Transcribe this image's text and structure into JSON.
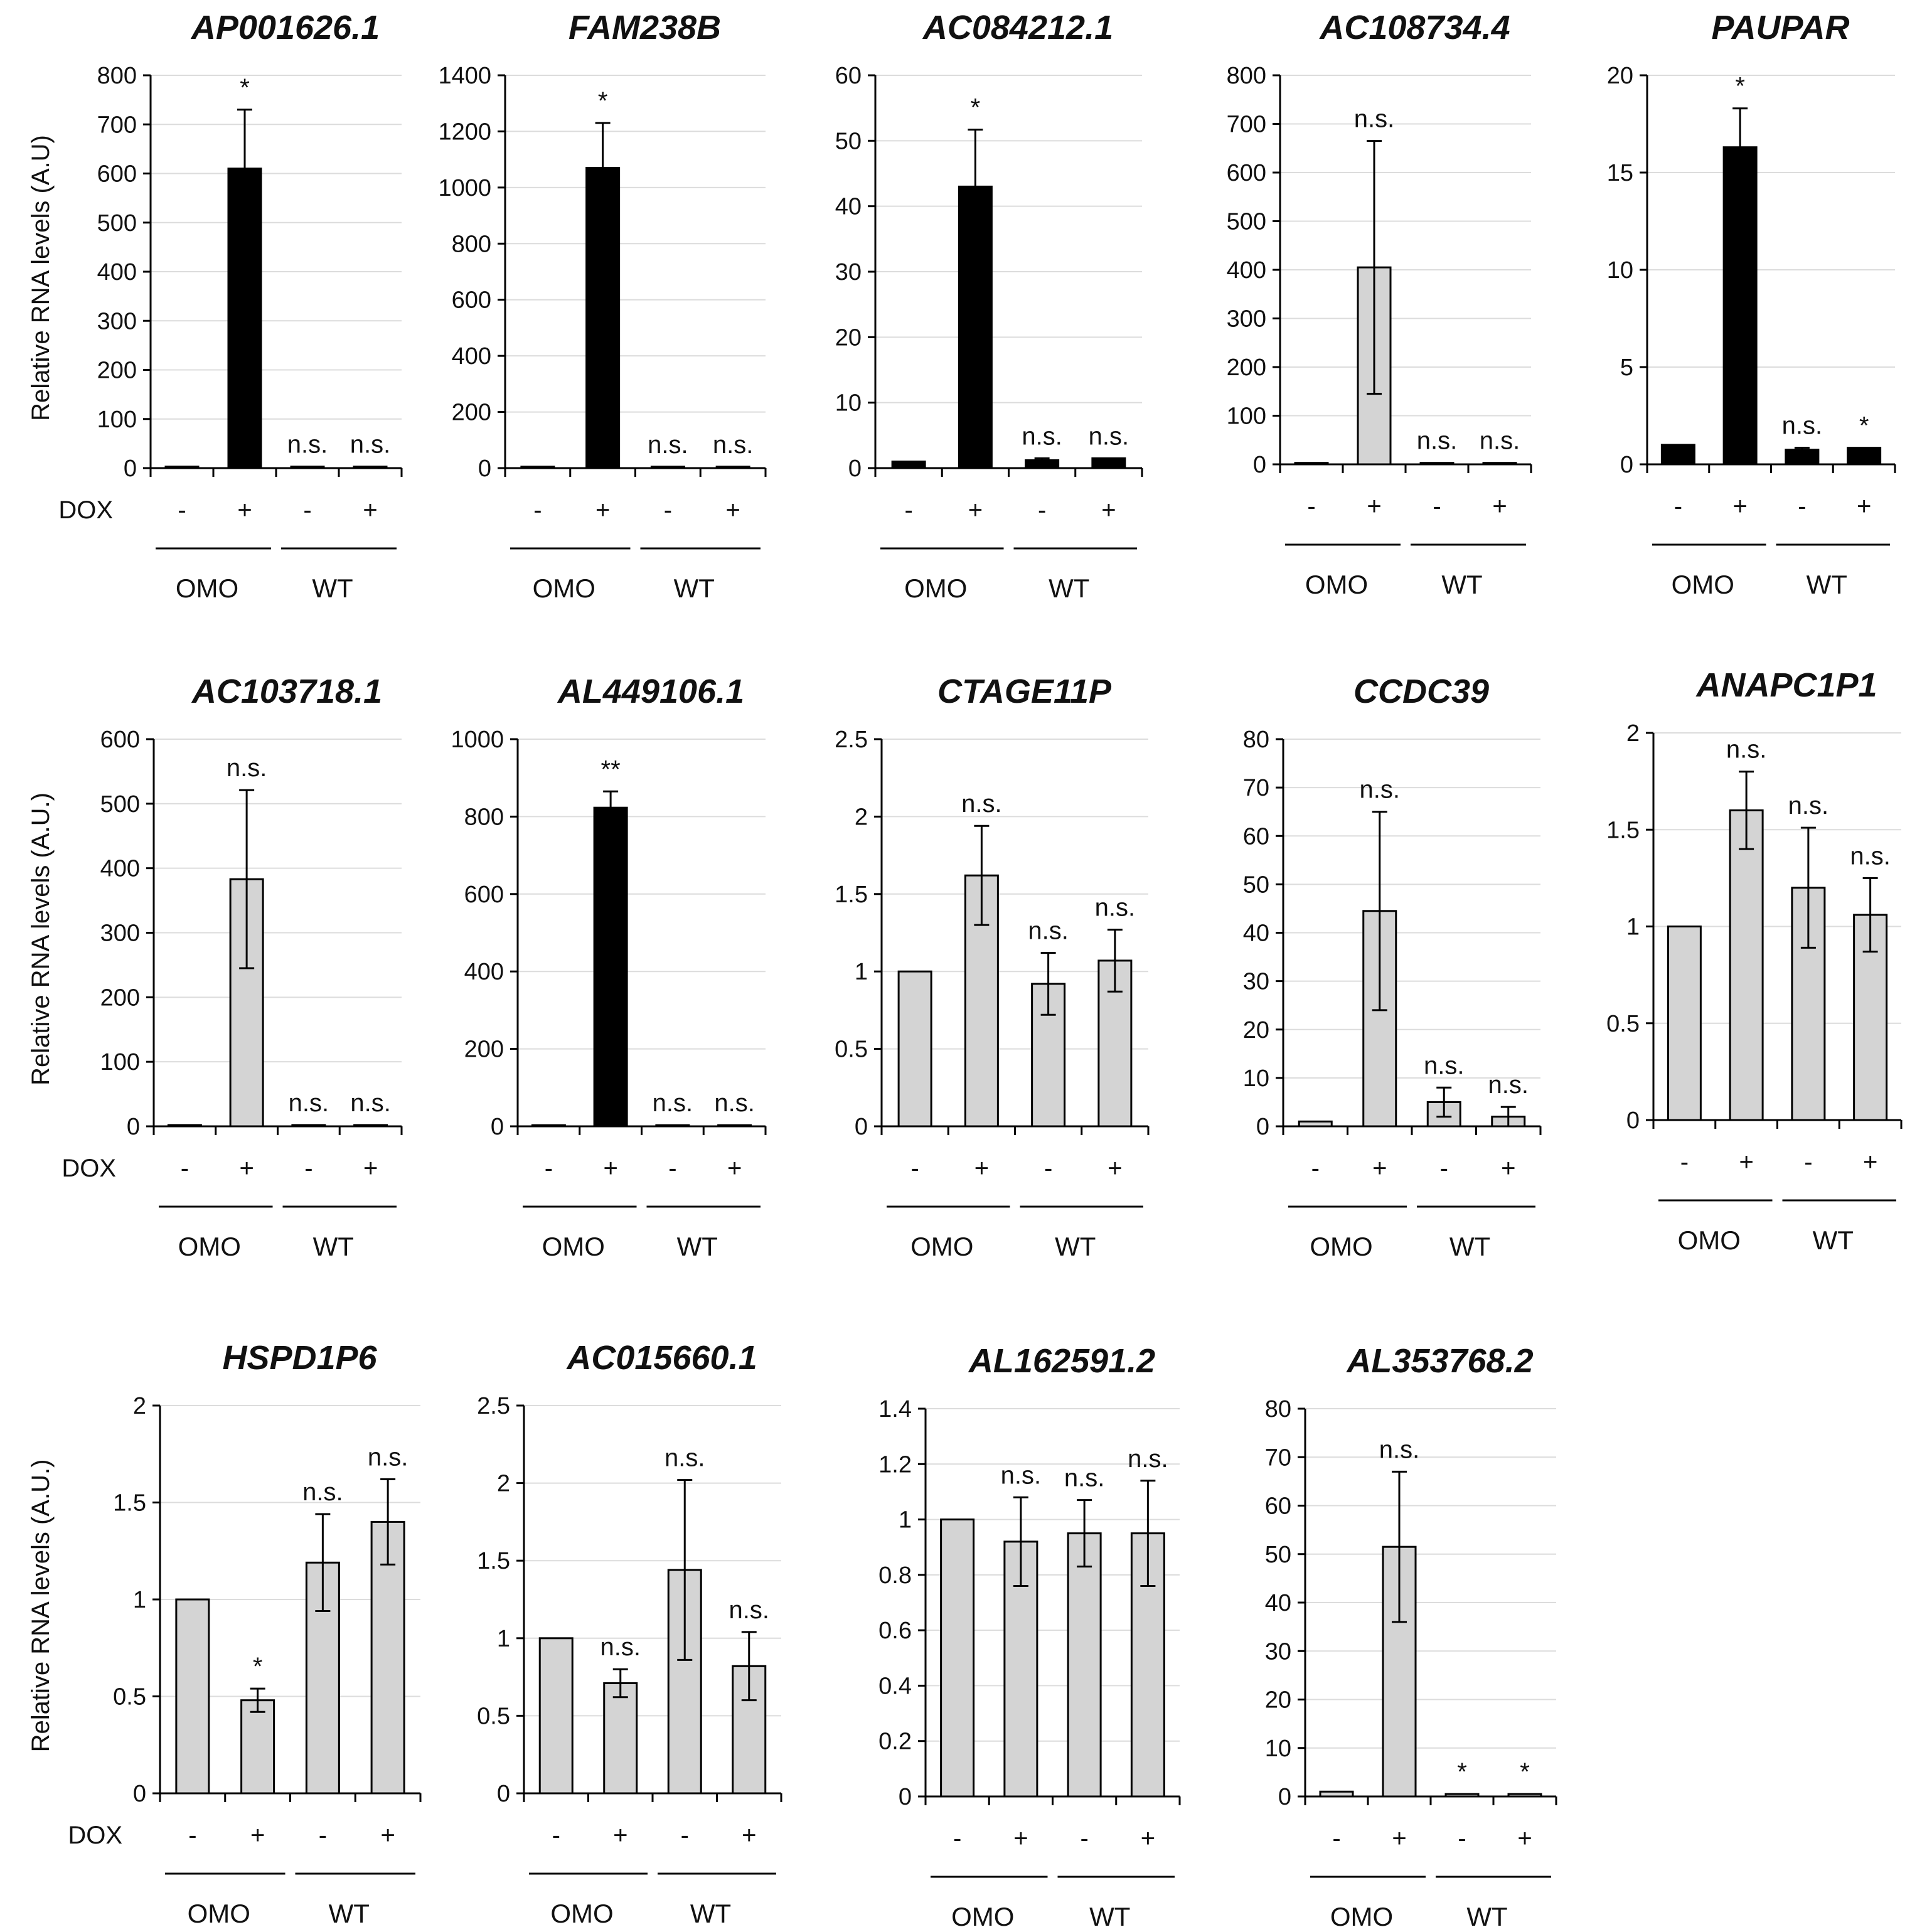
{
  "colors": {
    "black_bar": "#000000",
    "gray_bar": "#d4d4d4",
    "grid": "#dcdcdc"
  },
  "chart_data": [
    {
      "type": "bar",
      "title": "AP001626.1",
      "ylabel": "Relative RNA levels (A.U)",
      "ylim": [
        0,
        800
      ],
      "yticks": [
        "0",
        "100",
        "200",
        "300",
        "400",
        "500",
        "600",
        "700",
        "800"
      ],
      "categories": [
        "-",
        "+",
        "-",
        "+"
      ],
      "groups": [
        "OMO",
        "WT"
      ],
      "dox_label": "DOX",
      "values": [
        3,
        610,
        3,
        3
      ],
      "errors": [
        0,
        120,
        0,
        0
      ],
      "significance": [
        "",
        "*",
        "n.s.",
        "n.s."
      ],
      "bar_color": "black"
    },
    {
      "type": "bar",
      "title": "FAM238B",
      "ylabel": "",
      "ylim": [
        0,
        1400
      ],
      "yticks": [
        "0",
        "200",
        "400",
        "600",
        "800",
        "1000",
        "1200",
        "1400"
      ],
      "categories": [
        "-",
        "+",
        "-",
        "+"
      ],
      "groups": [
        "OMO",
        "WT"
      ],
      "dox_label": "",
      "values": [
        5,
        1070,
        5,
        5
      ],
      "errors": [
        0,
        160,
        0,
        0
      ],
      "significance": [
        "",
        "*",
        "n.s.",
        "n.s."
      ],
      "bar_color": "black"
    },
    {
      "type": "bar",
      "title": "AC084212.1",
      "ylabel": "",
      "ylim": [
        0,
        60
      ],
      "yticks": [
        "0",
        "10",
        "20",
        "30",
        "40",
        "50",
        "60"
      ],
      "categories": [
        "-",
        "+",
        "-",
        "+"
      ],
      "groups": [
        "OMO",
        "WT"
      ],
      "dox_label": "",
      "values": [
        1,
        43,
        1.2,
        1.5
      ],
      "errors": [
        0,
        8.7,
        0.3,
        0
      ],
      "significance": [
        "",
        "*",
        "n.s.",
        "n.s."
      ],
      "bar_color": "black"
    },
    {
      "type": "bar",
      "title": "AC108734.4",
      "ylabel": "",
      "ylim": [
        0,
        800
      ],
      "yticks": [
        "0",
        "100",
        "200",
        "300",
        "400",
        "500",
        "600",
        "700",
        "800"
      ],
      "categories": [
        "-",
        "+",
        "-",
        "+"
      ],
      "groups": [
        "OMO",
        "WT"
      ],
      "dox_label": "",
      "values": [
        3,
        405,
        3,
        3
      ],
      "errors": [
        0,
        260,
        0,
        0
      ],
      "significance": [
        "",
        "n.s.",
        "n.s.",
        "n.s."
      ],
      "bar_color": "gray"
    },
    {
      "type": "bar",
      "title": "PAUPAR",
      "ylabel": "",
      "ylim": [
        0,
        20
      ],
      "yticks": [
        "0",
        "5",
        "10",
        "15",
        "20"
      ],
      "categories": [
        "-",
        "+",
        "-",
        "+"
      ],
      "groups": [
        "OMO",
        "WT"
      ],
      "dox_label": "",
      "values": [
        1,
        16.3,
        0.75,
        0.85
      ],
      "errors": [
        0,
        2.0,
        0.1,
        0
      ],
      "significance": [
        "",
        "*",
        "n.s.",
        "*"
      ],
      "bar_color": "black"
    },
    {
      "type": "bar",
      "title": "AC103718.1",
      "ylabel": "Relative RNA levels (A.U.)",
      "ylim": [
        0,
        600
      ],
      "yticks": [
        "0",
        "100",
        "200",
        "300",
        "400",
        "500",
        "600"
      ],
      "categories": [
        "-",
        "+",
        "-",
        "+"
      ],
      "groups": [
        "OMO",
        "WT"
      ],
      "dox_label": "DOX",
      "values": [
        2,
        383,
        2,
        2
      ],
      "errors": [
        0,
        138,
        0,
        0
      ],
      "significance": [
        "",
        "n.s.",
        "n.s.",
        "n.s."
      ],
      "bar_color": "gray"
    },
    {
      "type": "bar",
      "title": "AL449106.1",
      "ylabel": "",
      "ylim": [
        0,
        1000
      ],
      "yticks": [
        "0",
        "200",
        "400",
        "600",
        "800",
        "1000"
      ],
      "categories": [
        "-",
        "+",
        "-",
        "+"
      ],
      "groups": [
        "OMO",
        "WT"
      ],
      "dox_label": "",
      "values": [
        3,
        823,
        3,
        3
      ],
      "errors": [
        0,
        42,
        0,
        0
      ],
      "significance": [
        "",
        "**",
        "n.s.",
        "n.s."
      ],
      "bar_color": "black"
    },
    {
      "type": "bar",
      "title": "CTAGE11P",
      "ylabel": "",
      "ylim": [
        0,
        2.5
      ],
      "yticks": [
        "0",
        "0.5",
        "1",
        "1.5",
        "2",
        "2.5"
      ],
      "categories": [
        "-",
        "+",
        "-",
        "+"
      ],
      "groups": [
        "OMO",
        "WT"
      ],
      "dox_label": "",
      "values": [
        1,
        1.62,
        0.92,
        1.07
      ],
      "errors": [
        0,
        0.32,
        0.2,
        0.2
      ],
      "significance": [
        "",
        "n.s.",
        "n.s.",
        "n.s."
      ],
      "bar_color": "gray"
    },
    {
      "type": "bar",
      "title": "CCDC39",
      "ylabel": "",
      "ylim": [
        0,
        80
      ],
      "yticks": [
        "0",
        "10",
        "20",
        "30",
        "40",
        "50",
        "60",
        "70",
        "80"
      ],
      "categories": [
        "-",
        "+",
        "-",
        "+"
      ],
      "groups": [
        "OMO",
        "WT"
      ],
      "dox_label": "",
      "values": [
        1,
        44.5,
        5,
        2
      ],
      "errors": [
        0,
        20.5,
        3,
        2
      ],
      "significance": [
        "",
        "n.s.",
        "n.s.",
        "n.s."
      ],
      "bar_color": "gray"
    },
    {
      "type": "bar",
      "title": "ANAPC1P1",
      "ylabel": "",
      "ylim": [
        0,
        2
      ],
      "yticks": [
        "0",
        "0.5",
        "1",
        "1.5",
        "2"
      ],
      "categories": [
        "-",
        "+",
        "-",
        "+"
      ],
      "groups": [
        "OMO",
        "WT"
      ],
      "dox_label": "",
      "values": [
        1,
        1.6,
        1.2,
        1.06
      ],
      "errors": [
        0,
        0.2,
        0.31,
        0.19
      ],
      "significance": [
        "",
        "n.s.",
        "n.s.",
        "n.s."
      ],
      "bar_color": "gray"
    },
    {
      "type": "bar",
      "title": "HSPD1P6",
      "ylabel": "Relative RNA levels (A.U.)",
      "ylim": [
        0,
        2
      ],
      "yticks": [
        "0",
        "0.5",
        "1",
        "1.5",
        "2"
      ],
      "categories": [
        "-",
        "+",
        "-",
        "+"
      ],
      "groups": [
        "OMO",
        "WT"
      ],
      "dox_label": "DOX",
      "values": [
        1,
        0.48,
        1.19,
        1.4
      ],
      "errors": [
        0,
        0.06,
        0.25,
        0.22
      ],
      "significance": [
        "",
        "*",
        "n.s.",
        "n.s."
      ],
      "bar_color": "gray"
    },
    {
      "type": "bar",
      "title": "AC015660.1",
      "ylabel": "",
      "ylim": [
        0,
        2.5
      ],
      "yticks": [
        "0",
        "0.5",
        "1",
        "1.5",
        "2",
        "2.5"
      ],
      "categories": [
        "-",
        "+",
        "-",
        "+"
      ],
      "groups": [
        "OMO",
        "WT"
      ],
      "dox_label": "",
      "values": [
        1,
        0.71,
        1.44,
        0.82
      ],
      "errors": [
        0,
        0.09,
        0.58,
        0.22
      ],
      "significance": [
        "",
        "n.s.",
        "n.s.",
        "n.s."
      ],
      "bar_color": "gray"
    },
    {
      "type": "bar",
      "title": "AL162591.2",
      "ylabel": "",
      "ylim": [
        0,
        1.4
      ],
      "yticks": [
        "0",
        "0.2",
        "0.4",
        "0.6",
        "0.8",
        "1",
        "1.2",
        "1.4"
      ],
      "categories": [
        "-",
        "+",
        "-",
        "+"
      ],
      "groups": [
        "OMO",
        "WT"
      ],
      "dox_label": "",
      "values": [
        1,
        0.92,
        0.95,
        0.95
      ],
      "errors": [
        0,
        0.16,
        0.12,
        0.19
      ],
      "significance": [
        "",
        "n.s.",
        "n.s.",
        "n.s."
      ],
      "bar_color": "gray"
    },
    {
      "type": "bar",
      "title": "AL353768.2",
      "ylabel": "",
      "ylim": [
        0,
        80
      ],
      "yticks": [
        "0",
        "10",
        "20",
        "30",
        "40",
        "50",
        "60",
        "70",
        "80"
      ],
      "categories": [
        "-",
        "+",
        "-",
        "+"
      ],
      "groups": [
        "OMO",
        "WT"
      ],
      "dox_label": "",
      "values": [
        1,
        51.5,
        0.5,
        0.5
      ],
      "errors": [
        0,
        15.5,
        0,
        0
      ],
      "significance": [
        "",
        "n.s.",
        "*",
        "*"
      ],
      "bar_color": "gray"
    }
  ]
}
